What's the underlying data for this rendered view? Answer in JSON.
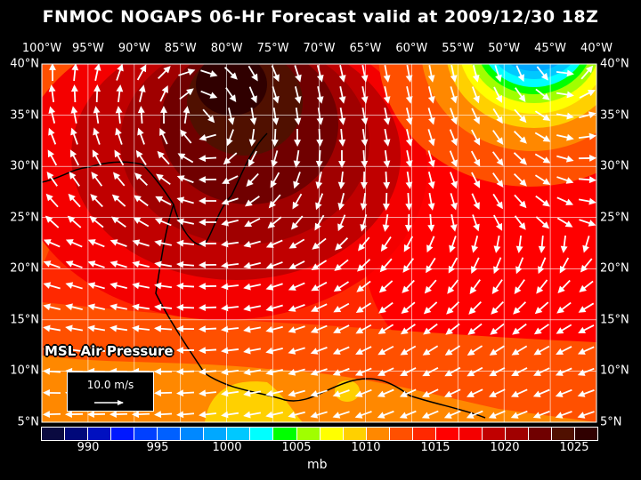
{
  "title": "FNMOC NOGAPS 06-Hr Forecast valid at 2009/12/30 18Z",
  "lon_labels": [
    "100°W",
    "95°W",
    "90°W",
    "85°W",
    "80°W",
    "75°W",
    "70°W",
    "65°W",
    "60°W",
    "55°W",
    "50°W",
    "45°W",
    "40°W"
  ],
  "lat_labels": [
    "40°N",
    "35°N",
    "30°N",
    "25°N",
    "20°N",
    "15°N",
    "10°N",
    "5°N"
  ],
  "field_label": "MSL Air Pressure",
  "vector_scale": "10.0 m/s",
  "colorbar": {
    "colors": [
      "#0a0a40",
      "#00087a",
      "#0010c0",
      "#0018ff",
      "#0040ff",
      "#0060ff",
      "#0088ff",
      "#00a8ff",
      "#00c8ff",
      "#00ffff",
      "#00ff00",
      "#a0ff00",
      "#ffff00",
      "#ffd000",
      "#ff8800",
      "#ff5000",
      "#ff2800",
      "#ff0000",
      "#f40000",
      "#c00000",
      "#a00000",
      "#700000",
      "#501000",
      "#300000"
    ],
    "labels": [
      "990",
      "995",
      "1000",
      "1005",
      "1010",
      "1015",
      "1020",
      "1025"
    ],
    "units": "mb"
  }
}
